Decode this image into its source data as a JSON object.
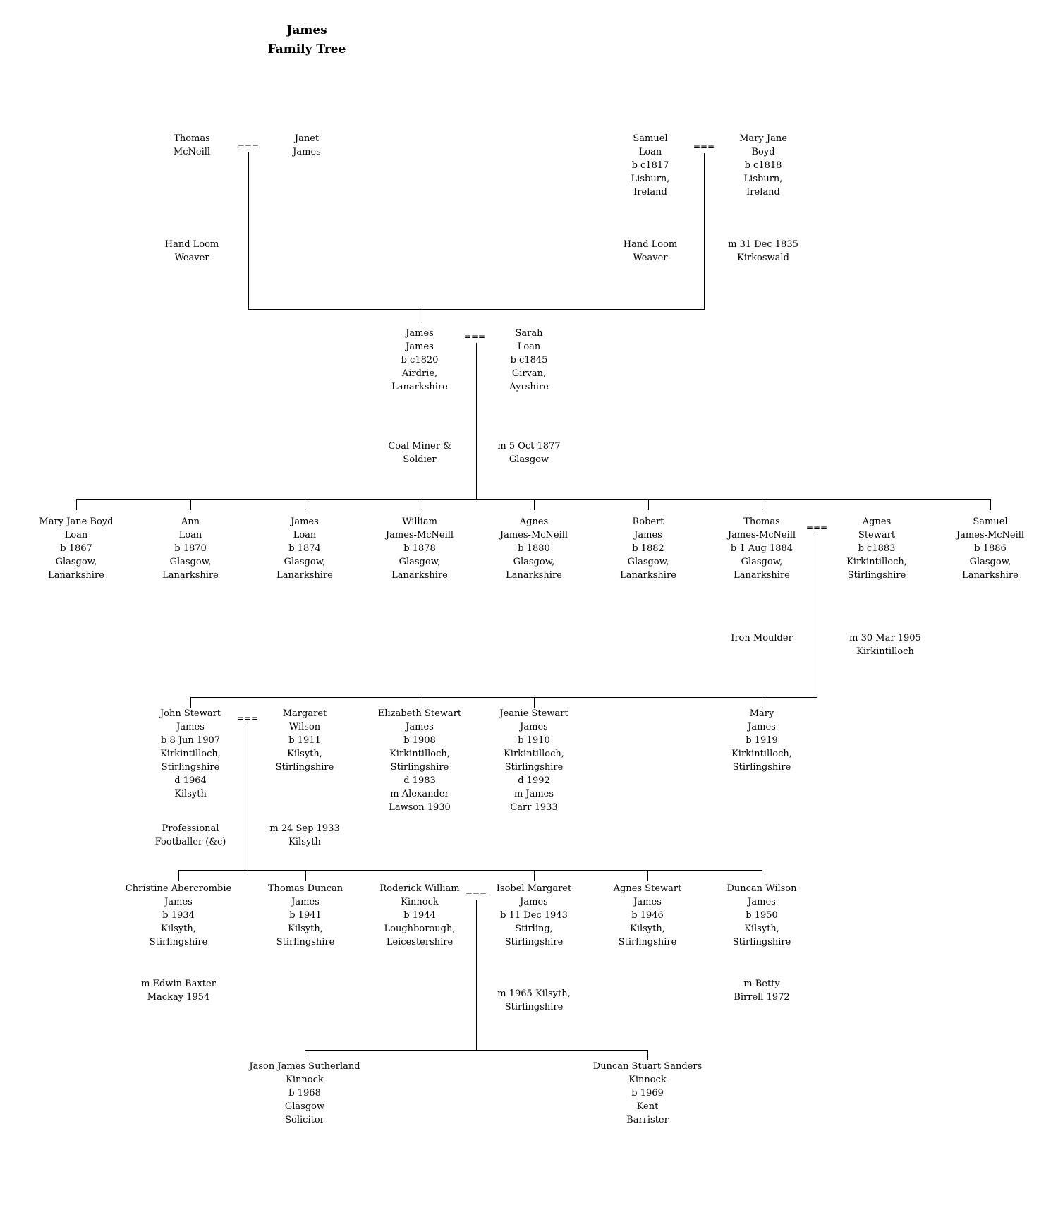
{
  "title": {
    "lines": [
      "James",
      "Family Tree"
    ]
  },
  "symbols": {
    "marriage": "==="
  },
  "persons": {
    "thomas_mcneill": {
      "lines": [
        "Thomas",
        "McNeill"
      ]
    },
    "janet_james": {
      "lines": [
        "Janet",
        "James"
      ]
    },
    "samuel_loan": {
      "lines": [
        "Samuel",
        "Loan",
        "b c1817",
        "Lisburn,",
        "Ireland"
      ]
    },
    "mary_jane_boyd": {
      "lines": [
        "Mary Jane",
        "Boyd",
        "b c1818",
        "Lisburn,",
        "Ireland"
      ]
    },
    "james_james": {
      "lines": [
        "James",
        "James",
        "b c1820",
        "Airdrie,",
        "Lanarkshire"
      ]
    },
    "sarah_loan": {
      "lines": [
        "Sarah",
        "Loan",
        "b c1845",
        "Girvan,",
        "Ayrshire"
      ]
    },
    "mary_jane_boyd_loan": {
      "lines": [
        "Mary Jane Boyd",
        "Loan",
        "b 1867",
        "Glasgow,",
        "Lanarkshire"
      ]
    },
    "ann_loan": {
      "lines": [
        "Ann",
        "Loan",
        "b 1870",
        "Glasgow,",
        "Lanarkshire"
      ]
    },
    "james_loan": {
      "lines": [
        "James",
        "Loan",
        "b 1874",
        "Glasgow,",
        "Lanarkshire"
      ]
    },
    "william_james_mcneill": {
      "lines": [
        "William",
        "James-McNeill",
        "b 1878",
        "Glasgow,",
        "Lanarkshire"
      ]
    },
    "agnes_james_mcneill": {
      "lines": [
        "Agnes",
        "James-McNeill",
        "b 1880",
        "Glasgow,",
        "Lanarkshire"
      ]
    },
    "robert_james": {
      "lines": [
        "Robert",
        "James",
        "b 1882",
        "Glasgow,",
        "Lanarkshire"
      ]
    },
    "thomas_james_mcneill": {
      "lines": [
        "Thomas",
        "James-McNeill",
        "b 1 Aug 1884",
        "Glasgow,",
        "Lanarkshire"
      ]
    },
    "agnes_stewart": {
      "lines": [
        "Agnes",
        "Stewart",
        "b c1883",
        "Kirkintilloch,",
        "Stirlingshire"
      ]
    },
    "samuel_james_mcneill": {
      "lines": [
        "Samuel",
        "James-McNeill",
        "b 1886",
        "Glasgow,",
        "Lanarkshire"
      ]
    },
    "john_stewart_james": {
      "lines": [
        "John Stewart",
        "James",
        "b 8 Jun 1907",
        "Kirkintilloch,",
        "Stirlingshire",
        "d 1964",
        "Kilsyth"
      ]
    },
    "margaret_wilson": {
      "lines": [
        "Margaret",
        "Wilson",
        "b 1911",
        "Kilsyth,",
        "Stirlingshire"
      ]
    },
    "elizabeth_stewart_james": {
      "lines": [
        "Elizabeth Stewart",
        "James",
        "b 1908",
        "Kirkintilloch,",
        "Stirlingshire",
        "d 1983",
        "m Alexander",
        "Lawson 1930"
      ]
    },
    "jeanie_stewart_james": {
      "lines": [
        "Jeanie Stewart",
        "James",
        "b 1910",
        "Kirkintilloch,",
        "Stirlingshire",
        "d 1992",
        "m James",
        "Carr 1933"
      ]
    },
    "mary_james": {
      "lines": [
        "Mary",
        "James",
        "b 1919",
        "Kirkintilloch,",
        "Stirlingshire"
      ]
    },
    "christine_abercrombie_james": {
      "lines": [
        "Christine Abercrombie",
        "James",
        "b 1934",
        "Kilsyth,",
        "Stirlingshire"
      ]
    },
    "thomas_duncan_james": {
      "lines": [
        "Thomas Duncan",
        "James",
        "b 1941",
        "Kilsyth,",
        "Stirlingshire"
      ]
    },
    "roderick_william_kinnock": {
      "lines": [
        "Roderick William",
        "Kinnock",
        "b 1944",
        "Loughborough,",
        "Leicestershire"
      ]
    },
    "isobel_margaret_james": {
      "lines": [
        "Isobel Margaret",
        "James",
        "b 11 Dec 1943",
        "Stirling,",
        "Stirlingshire"
      ]
    },
    "agnes_stewart_james": {
      "lines": [
        "Agnes Stewart",
        "James",
        "b 1946",
        "Kilsyth,",
        "Stirlingshire"
      ]
    },
    "duncan_wilson_james": {
      "lines": [
        "Duncan Wilson",
        "James",
        "b 1950",
        "Kilsyth,",
        "Stirlingshire"
      ]
    },
    "jason_james_sutherland_kinnock": {
      "lines": [
        "Jason James Sutherland",
        "Kinnock",
        "b 1968",
        "Glasgow",
        "Solicitor"
      ]
    },
    "duncan_stuart_sanders_kinnock": {
      "lines": [
        "Duncan Stuart Sanders",
        "Kinnock",
        "b 1969",
        "Kent",
        "Barrister"
      ]
    }
  },
  "notes": {
    "thomas_mcneill_occupation": {
      "lines": [
        "Hand Loom",
        "Weaver"
      ]
    },
    "samuel_loan_occupation": {
      "lines": [
        "Hand Loom",
        "Weaver"
      ]
    },
    "samuel_mary_marriage": {
      "lines": [
        "m 31 Dec 1835",
        "Kirkoswald"
      ]
    },
    "james_james_occupation": {
      "lines": [
        "Coal Miner &",
        "Soldier"
      ]
    },
    "james_sarah_marriage": {
      "lines": [
        "m 5 Oct 1877",
        "Glasgow"
      ]
    },
    "thomas_jm_occupation": {
      "lines": [
        "Iron Moulder"
      ]
    },
    "thomas_agnes_marriage": {
      "lines": [
        "m 30 Mar 1905",
        "Kirkintilloch"
      ]
    },
    "john_occupation": {
      "lines": [
        "Professional",
        "Footballer (&c)"
      ]
    },
    "john_margaret_marriage": {
      "lines": [
        "m 24 Sep 1933",
        "Kilsyth"
      ]
    },
    "christine_marriage": {
      "lines": [
        "m Edwin Baxter",
        "Mackay 1954"
      ]
    },
    "roderick_isobel_marriage": {
      "lines": [
        "m 1965 Kilsyth,",
        "Stirlingshire"
      ]
    },
    "duncan_wilson_marriage": {
      "lines": [
        "m Betty",
        "Birrell 1972"
      ]
    }
  }
}
